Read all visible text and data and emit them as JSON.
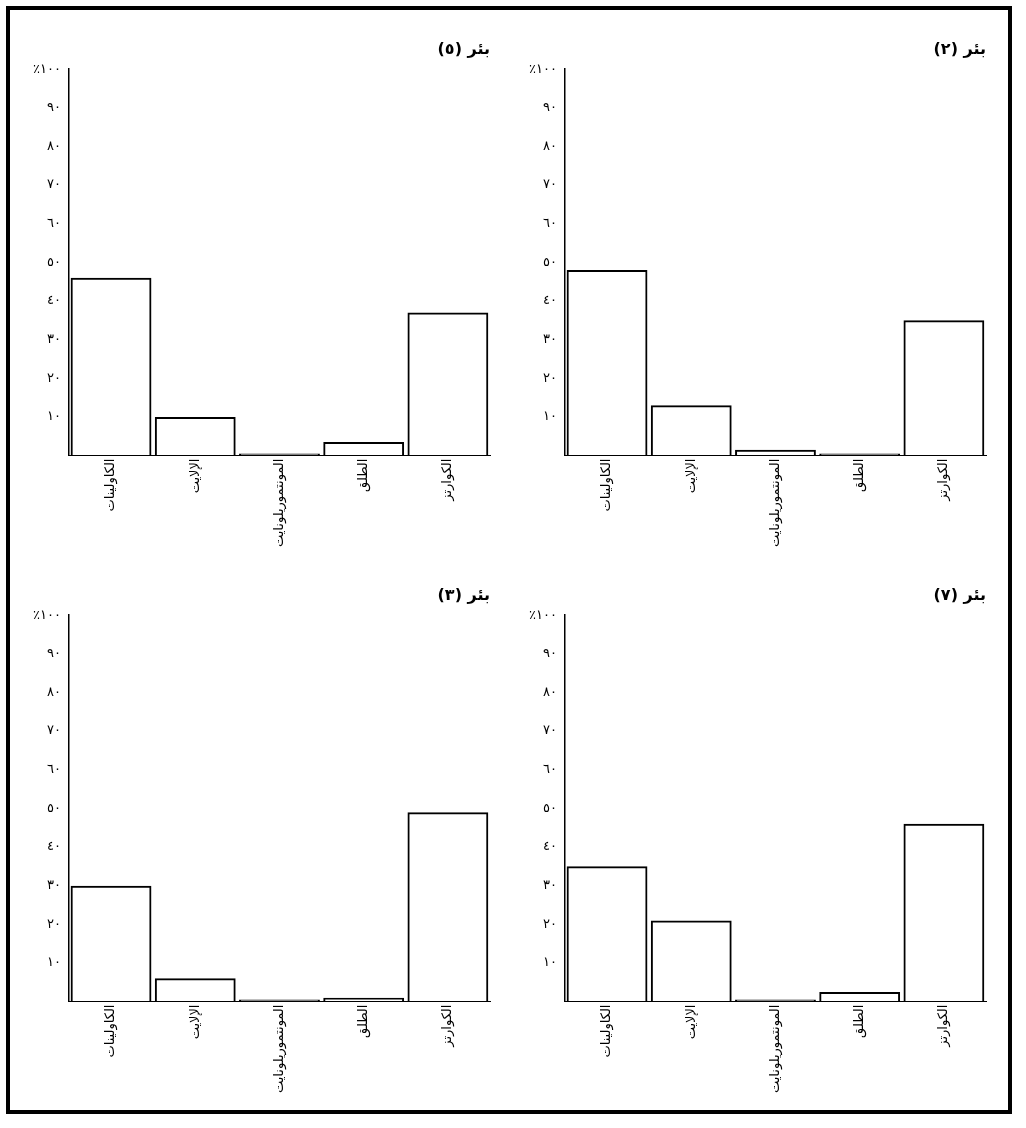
{
  "chart_data": [
    {
      "type": "bar",
      "title": "بئر (٥)",
      "categories": [
        "الكاولينات",
        "الإلايت",
        "المونتموريلونايت",
        "الطلق",
        "الكوارتز"
      ],
      "values": [
        46,
        10,
        0.5,
        3.5,
        37
      ],
      "color": "#000000",
      "ylim": [
        0,
        100
      ],
      "yticks": [
        {
          "value": 10,
          "label": "١٠"
        },
        {
          "value": 20,
          "label": "٢٠"
        },
        {
          "value": 30,
          "label": "٣٠"
        },
        {
          "value": 40,
          "label": "٤٠"
        },
        {
          "value": 50,
          "label": "٥٠"
        },
        {
          "value": 60,
          "label": "٦٠"
        },
        {
          "value": 70,
          "label": "٧٠"
        },
        {
          "value": 80,
          "label": "٨٠"
        },
        {
          "value": 90,
          "label": "٩٠"
        },
        {
          "value": 100,
          "label": "٪١٠٠"
        }
      ],
      "grid": false
    },
    {
      "type": "bar",
      "title": "بئر (٢)",
      "categories": [
        "الكاولينات",
        "الإلايت",
        "المونتموريلونايت",
        "الطلق",
        "الكوارتز"
      ],
      "values": [
        48,
        13,
        1.5,
        0.5,
        35
      ],
      "color": "#000000",
      "ylim": [
        0,
        100
      ],
      "yticks": [
        {
          "value": 10,
          "label": "١٠"
        },
        {
          "value": 20,
          "label": "٢٠"
        },
        {
          "value": 30,
          "label": "٣٠"
        },
        {
          "value": 40,
          "label": "٤٠"
        },
        {
          "value": 50,
          "label": "٥٠"
        },
        {
          "value": 60,
          "label": "٦٠"
        },
        {
          "value": 70,
          "label": "٧٠"
        },
        {
          "value": 80,
          "label": "٨٠"
        },
        {
          "value": 90,
          "label": "٩٠"
        },
        {
          "value": 100,
          "label": "٪١٠٠"
        }
      ],
      "grid": false
    },
    {
      "type": "bar",
      "title": "بئر (٣)",
      "categories": [
        "الكاولينات",
        "الإلايت",
        "المونتموريلونايت",
        "الطلق",
        "الكوارتز"
      ],
      "values": [
        30,
        6,
        0.5,
        1,
        49
      ],
      "color": "#000000",
      "ylim": [
        0,
        100
      ],
      "yticks": [
        {
          "value": 10,
          "label": "١٠"
        },
        {
          "value": 20,
          "label": "٢٠"
        },
        {
          "value": 30,
          "label": "٣٠"
        },
        {
          "value": 40,
          "label": "٤٠"
        },
        {
          "value": 50,
          "label": "٥٠"
        },
        {
          "value": 60,
          "label": "٦٠"
        },
        {
          "value": 70,
          "label": "٧٠"
        },
        {
          "value": 80,
          "label": "٨٠"
        },
        {
          "value": 90,
          "label": "٩٠"
        },
        {
          "value": 100,
          "label": "٪١٠٠"
        }
      ],
      "grid": false
    },
    {
      "type": "bar",
      "title": "بئر (٧)",
      "categories": [
        "الكاولينات",
        "الإلايت",
        "المونتموريلونايت",
        "الطلق",
        "الكوارتز"
      ],
      "values": [
        35,
        21,
        0.5,
        2.5,
        46
      ],
      "color": "#000000",
      "ylim": [
        0,
        100
      ],
      "yticks": [
        {
          "value": 10,
          "label": "١٠"
        },
        {
          "value": 20,
          "label": "٢٠"
        },
        {
          "value": 30,
          "label": "٣٠"
        },
        {
          "value": 40,
          "label": "٤٠"
        },
        {
          "value": 50,
          "label": "٥٠"
        },
        {
          "value": 60,
          "label": "٦٠"
        },
        {
          "value": 70,
          "label": "٧٠"
        },
        {
          "value": 80,
          "label": "٨٠"
        },
        {
          "value": 90,
          "label": "٩٠"
        },
        {
          "value": 100,
          "label": "٪١٠٠"
        }
      ],
      "grid": false
    }
  ]
}
